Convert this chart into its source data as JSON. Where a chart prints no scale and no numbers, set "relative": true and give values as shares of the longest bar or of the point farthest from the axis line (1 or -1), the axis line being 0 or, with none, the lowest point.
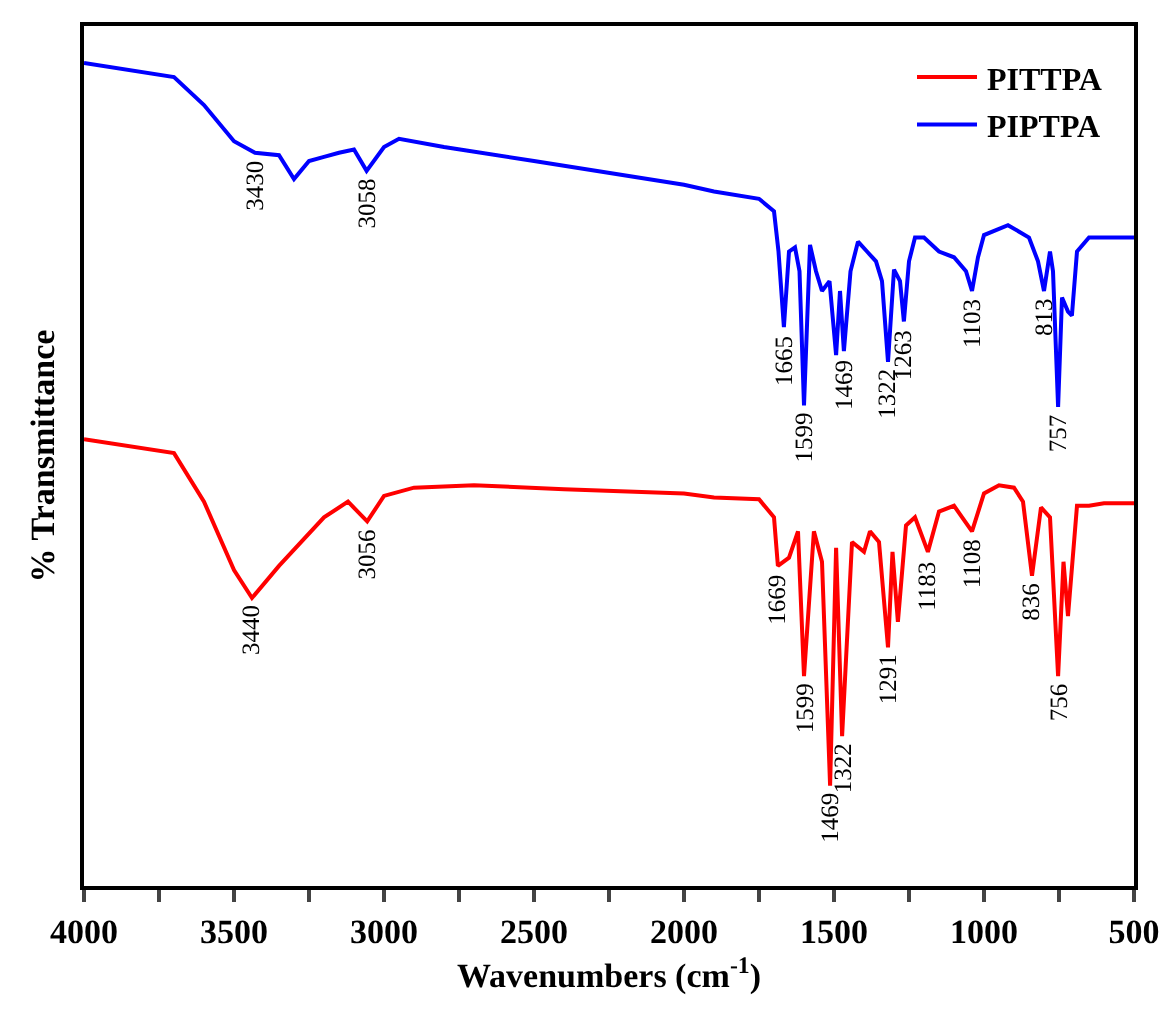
{
  "chart_data": {
    "type": "line",
    "relative": true,
    "xlabel": "Wavenumbers (cm$^{-1}$)",
    "ylabel": "% Transmittance",
    "xlim": [
      4000,
      500
    ],
    "xticks": [
      4000,
      {
        "value": 3750,
        "label": null
      },
      3500,
      {
        "value": 3250,
        "label": null
      },
      3000,
      {
        "value": 2750,
        "label": null
      },
      2500,
      {
        "value": 2250,
        "label": null
      },
      2000,
      {
        "value": 1750,
        "label": null
      },
      1500,
      {
        "value": 1250,
        "label": null
      },
      1000,
      {
        "value": 750,
        "label": null
      },
      500
    ],
    "legend": "top right",
    "tick_labels": "x",
    "grid": false,
    "series": [
      {
        "name": "PITTPA",
        "color": "#ff0000",
        "x": [
          4000,
          3700,
          3600,
          3500,
          3440,
          3350,
          3200,
          3120,
          3056,
          3000,
          2900,
          2700,
          2400,
          2000,
          1900,
          1750,
          1700,
          1687,
          1650,
          1620,
          1600,
          1567,
          1540,
          1513,
          1493,
          1473,
          1440,
          1400,
          1380,
          1350,
          1320,
          1305,
          1287,
          1260,
          1230,
          1187,
          1150,
          1100,
          1040,
          1000,
          950,
          900,
          870,
          840,
          810,
          780,
          753,
          735,
          720,
          690,
          650,
          600,
          500
        ],
        "values": [
          0.543,
          0.526,
          0.467,
          0.384,
          0.35,
          0.389,
          0.448,
          0.467,
          0.443,
          0.474,
          0.484,
          0.487,
          0.482,
          0.477,
          0.472,
          0.47,
          0.448,
          0.389,
          0.399,
          0.431,
          0.255,
          0.431,
          0.394,
          0.122,
          0.411,
          0.182,
          0.418,
          0.406,
          0.431,
          0.418,
          0.29,
          0.406,
          0.321,
          0.438,
          0.448,
          0.406,
          0.455,
          0.462,
          0.431,
          0.477,
          0.487,
          0.484,
          0.467,
          0.377,
          0.46,
          0.448,
          0.255,
          0.394,
          0.328,
          0.462,
          0.462,
          0.465,
          0.465
        ]
      },
      {
        "name": "PIPTPA",
        "color": "#0000ff",
        "x": [
          4000,
          3700,
          3600,
          3500,
          3430,
          3350,
          3300,
          3250,
          3200,
          3150,
          3100,
          3058,
          3000,
          2950,
          2800,
          2500,
          2000,
          1900,
          1750,
          1700,
          1685,
          1667,
          1650,
          1630,
          1615,
          1600,
          1580,
          1560,
          1540,
          1515,
          1493,
          1480,
          1467,
          1445,
          1420,
          1390,
          1360,
          1340,
          1320,
          1300,
          1280,
          1267,
          1250,
          1230,
          1200,
          1150,
          1100,
          1060,
          1040,
          1020,
          1000,
          920,
          850,
          820,
          800,
          780,
          770,
          753,
          740,
          720,
          707,
          690,
          650,
          600,
          500
        ],
        "values": [
          1.0,
          0.983,
          0.949,
          0.905,
          0.891,
          0.888,
          0.859,
          0.881,
          0.886,
          0.891,
          0.895,
          0.869,
          0.898,
          0.908,
          0.898,
          0.881,
          0.852,
          0.844,
          0.835,
          0.82,
          0.771,
          0.679,
          0.771,
          0.776,
          0.747,
          0.584,
          0.779,
          0.747,
          0.723,
          0.735,
          0.645,
          0.723,
          0.65,
          0.747,
          0.783,
          0.771,
          0.759,
          0.735,
          0.637,
          0.749,
          0.735,
          0.686,
          0.759,
          0.788,
          0.788,
          0.771,
          0.764,
          0.747,
          0.723,
          0.764,
          0.791,
          0.803,
          0.788,
          0.759,
          0.723,
          0.771,
          0.747,
          0.582,
          0.715,
          0.698,
          0.693,
          0.771,
          0.788,
          0.788,
          0.788
        ]
      }
    ],
    "annotations": [
      {
        "text": "3430",
        "x": 3430,
        "y": 0.891
      },
      {
        "text": "3058",
        "x": 3058,
        "y": 0.869
      },
      {
        "text": "1665",
        "x": 1667,
        "y": 0.679
      },
      {
        "text": "1599",
        "x": 1600,
        "y": 0.584
      },
      {
        "text": "1469",
        "x": 1467,
        "y": 0.65
      },
      {
        "text": "1322",
        "x": 1320,
        "y": 0.637
      },
      {
        "text": "1263",
        "x": 1267,
        "y": 0.686
      },
      {
        "text": "1103",
        "x": 1040,
        "y": 0.723
      },
      {
        "text": "813",
        "x": 800,
        "y": 0.723
      },
      {
        "text": "757",
        "x": 753,
        "y": 0.582
      },
      {
        "text": "3440",
        "x": 3440,
        "y": 0.35
      },
      {
        "text": "3056",
        "x": 3056,
        "y": 0.443
      },
      {
        "text": "1669",
        "x": 1687,
        "y": 0.389
      },
      {
        "text": "1599",
        "x": 1600,
        "y": 0.255
      },
      {
        "text": "1469",
        "x": 1513,
        "y": 0.122
      },
      {
        "text": "1322",
        "x": 1473,
        "y": 0.182
      },
      {
        "text": "1291",
        "x": 1320,
        "y": 0.29
      },
      {
        "text": "1183",
        "x": 1187,
        "y": 0.406
      },
      {
        "text": "1108",
        "x": 1040,
        "y": 0.431
      },
      {
        "text": "836",
        "x": 840,
        "y": 0.377
      },
      {
        "text": "756",
        "x": 753,
        "y": 0.255
      }
    ]
  }
}
